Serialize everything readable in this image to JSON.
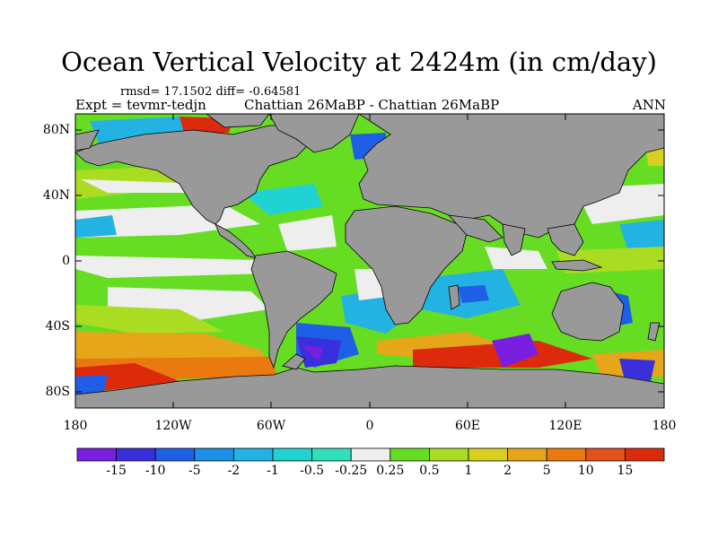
{
  "title": "Ocean Vertical Velocity at 2424m (in cm/day)",
  "stats": "rmsd= 17.1502 diff= -0.64581",
  "experiment": "Expt = tevmr-tedjn",
  "case": "Chattian  26MaBP - Chattian  26MaBP",
  "season": "ANN",
  "lat_labels": [
    "80N",
    "40N",
    "0",
    "40S",
    "80S"
  ],
  "lon_labels": [
    "180",
    "120W",
    "60W",
    "0",
    "60E",
    "120E",
    "180"
  ],
  "colorbar": {
    "labels": [
      "-15",
      "-10",
      "-5",
      "-2",
      "-1",
      "-0.5",
      "-0.25",
      "0.25",
      "0.5",
      "1",
      "2",
      "5",
      "10",
      "15"
    ],
    "colors": [
      "#7a1fe0",
      "#3a2fdc",
      "#1f5fe6",
      "#1c8fe6",
      "#22b3e3",
      "#1fd3d3",
      "#30e0b8",
      "#eeeeee",
      "#66dd22",
      "#aadd22",
      "#d8d020",
      "#e6a619",
      "#ea7a10",
      "#e6501a",
      "#dd2a0c"
    ]
  },
  "land_color": "#999999",
  "colors": {
    "white": "#eeeeee",
    "green": "#66dd22",
    "lime": "#aadd22",
    "yellow": "#d8d020",
    "orange": "#e6a619",
    "dark_orange": "#ea7a10",
    "red": "#dd2a0c",
    "cyan": "#22b3e3",
    "aqua": "#1fd3d3",
    "blue": "#1f5fe6",
    "navy": "#3a2fdc",
    "purple": "#7a1fe0"
  }
}
